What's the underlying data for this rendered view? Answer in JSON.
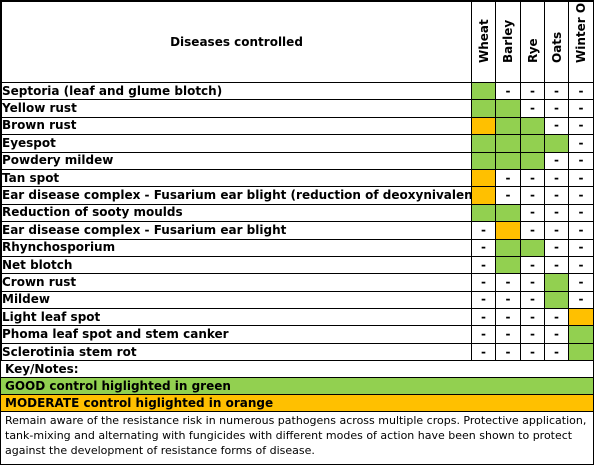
{
  "title": "Diseases controlled",
  "crops": [
    "Wheat",
    "Barley",
    "Rye",
    "Oats",
    "Winter OSR"
  ],
  "colors": {
    "good": "#92d050",
    "moderate": "#ffc000"
  },
  "rows": [
    {
      "disease": "Septoria (leaf and glume blotch)",
      "status": [
        "good",
        "-",
        "-",
        "-",
        "-"
      ]
    },
    {
      "disease": "Yellow rust",
      "status": [
        "good",
        "good",
        "-",
        "-",
        "-"
      ]
    },
    {
      "disease": "Brown rust",
      "status": [
        "moderate",
        "good",
        "good",
        "-",
        "-"
      ]
    },
    {
      "disease": "Eyespot",
      "status": [
        "good",
        "good",
        "good",
        "good",
        "-"
      ]
    },
    {
      "disease": "Powdery mildew",
      "status": [
        "good",
        "good",
        "good",
        "-",
        "-"
      ]
    },
    {
      "disease": "Tan spot",
      "status": [
        "moderate",
        "-",
        "-",
        "-",
        "-"
      ]
    },
    {
      "disease": "Ear disease complex - Fusarium ear blight (reduction of deoxynivalenol)",
      "status": [
        "moderate",
        "-",
        "-",
        "-",
        "-"
      ]
    },
    {
      "disease": "Reduction of sooty moulds",
      "status": [
        "good",
        "good",
        "-",
        "-",
        "-"
      ]
    },
    {
      "disease": "Ear disease complex - Fusarium ear blight",
      "status": [
        "-",
        "moderate",
        "-",
        "-",
        "-"
      ]
    },
    {
      "disease": "Rhynchosporium",
      "status": [
        "-",
        "good",
        "good",
        "-",
        "-"
      ]
    },
    {
      "disease": "Net blotch",
      "status": [
        "-",
        "good",
        "-",
        "-",
        "-"
      ]
    },
    {
      "disease": "Crown rust",
      "status": [
        "-",
        "-",
        "-",
        "good",
        "-"
      ]
    },
    {
      "disease": "Mildew",
      "status": [
        "-",
        "-",
        "-",
        "good",
        "-"
      ]
    },
    {
      "disease": "Light leaf spot",
      "status": [
        "-",
        "-",
        "-",
        "-",
        "moderate"
      ]
    },
    {
      "disease": "Phoma leaf spot and stem canker",
      "status": [
        "-",
        "-",
        "-",
        "-",
        "good"
      ]
    },
    {
      "disease": "Sclerotinia stem rot",
      "status": [
        "-",
        "-",
        "-",
        "-",
        "good"
      ]
    }
  ],
  "key": {
    "heading": "Key/Notes:",
    "good": "GOOD control higlighted in green",
    "moderate": "MODERATE control higlighted in orange",
    "note": "Remain aware of the resistance risk in numerous pathogens across multiple crops. Protective application, tank-mixing and alternating with fungicides with different modes of action have been shown to protect against the development of resistance forms of disease."
  }
}
